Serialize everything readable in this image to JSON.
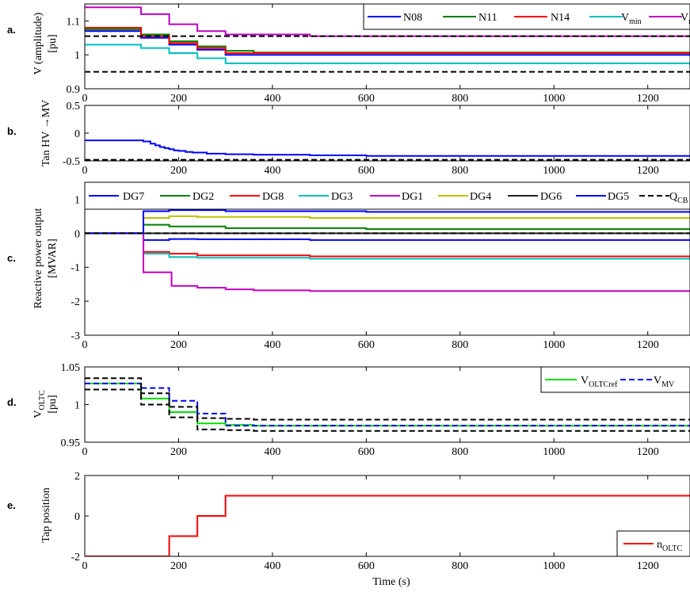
{
  "chart_data": [
    {
      "id": "a",
      "type": "line",
      "panel_letter": "a.",
      "ylabel_lines": [
        "V (amplitude)",
        "[pu]"
      ],
      "xlim": [
        0,
        1290
      ],
      "ylim": [
        0.9,
        1.15
      ],
      "xticks": [
        0,
        200,
        400,
        600,
        800,
        1000,
        1200
      ],
      "yticks": [
        0.9,
        1,
        1.1
      ],
      "ytick_labels": [
        "0.9",
        "1",
        "1.1"
      ],
      "legend": {
        "placement": "top-right",
        "orientation": "horizontal"
      },
      "series": [
        {
          "name": "N08",
          "color": "#0000ff",
          "dash": "solid",
          "step": true,
          "x": [
            0,
            120,
            180,
            240,
            300,
            1290
          ],
          "y": [
            1.07,
            1.05,
            1.03,
            1.015,
            1.0,
            1.0
          ]
        },
        {
          "name": "N11",
          "color": "#008000",
          "dash": "solid",
          "step": true,
          "x": [
            0,
            120,
            180,
            240,
            300,
            360,
            1290
          ],
          "y": [
            1.075,
            1.06,
            1.04,
            1.025,
            1.012,
            1.007,
            1.007
          ]
        },
        {
          "name": "N14",
          "color": "#ff0000",
          "dash": "solid",
          "step": true,
          "x": [
            0,
            120,
            180,
            240,
            300,
            1290
          ],
          "y": [
            1.08,
            1.055,
            1.035,
            1.02,
            1.005,
            1.005
          ]
        },
        {
          "name": "V",
          "name_sub": "min",
          "color": "#00c0c0",
          "dash": "solid",
          "step": true,
          "x": [
            0,
            120,
            180,
            240,
            300,
            1290
          ],
          "y": [
            1.03,
            1.02,
            1.005,
            0.99,
            0.975,
            0.97
          ]
        },
        {
          "name": "V",
          "name_sub": "max",
          "color": "#c000c0",
          "dash": "solid",
          "step": true,
          "x": [
            0,
            120,
            180,
            240,
            300,
            480,
            1290
          ],
          "y": [
            1.14,
            1.12,
            1.09,
            1.07,
            1.06,
            1.055,
            1.055
          ]
        },
        {
          "name": "",
          "color": "#000000",
          "dash": "dashed",
          "step": false,
          "x": [
            0,
            1290
          ],
          "y": [
            1.055,
            1.055
          ]
        },
        {
          "name": "",
          "color": "#000000",
          "dash": "dashed",
          "step": false,
          "x": [
            0,
            1290
          ],
          "y": [
            0.95,
            0.95
          ]
        }
      ]
    },
    {
      "id": "b",
      "type": "line",
      "panel_letter": "b.",
      "ylabel_lines": [
        "Tan HV →MV"
      ],
      "xlim": [
        0,
        1290
      ],
      "ylim": [
        -0.5,
        0.5
      ],
      "xticks": [
        0,
        200,
        400,
        600,
        800,
        1000,
        1200
      ],
      "yticks": [
        -0.5,
        0,
        0.5
      ],
      "ytick_labels": [
        "-0.5",
        "0",
        "0.5"
      ],
      "series": [
        {
          "name": "",
          "color": "#0000ff",
          "dash": "solid",
          "step": true,
          "x": [
            0,
            125,
            140,
            150,
            160,
            170,
            180,
            190,
            200,
            215,
            230,
            260,
            300,
            360,
            480,
            600,
            1290
          ],
          "y": [
            -0.13,
            -0.15,
            -0.19,
            -0.22,
            -0.25,
            -0.27,
            -0.29,
            -0.31,
            -0.32,
            -0.34,
            -0.35,
            -0.37,
            -0.38,
            -0.39,
            -0.4,
            -0.41,
            -0.41
          ]
        },
        {
          "name": "",
          "color": "#000000",
          "dash": "dashed",
          "step": false,
          "x": [
            0,
            1290
          ],
          "y": [
            -0.48,
            -0.48
          ]
        }
      ]
    },
    {
      "id": "c",
      "type": "line",
      "panel_letter": "c.",
      "ylabel_lines": [
        "Reactive power output",
        "[MVAR]"
      ],
      "xlim": [
        0,
        1290
      ],
      "ylim": [
        -3,
        1.5
      ],
      "xticks": [
        0,
        200,
        400,
        600,
        800,
        1000,
        1200
      ],
      "yticks": [
        -3,
        -2,
        -1,
        0,
        1
      ],
      "ytick_labels": [
        "-3",
        "-2",
        "-1",
        "0",
        "1"
      ],
      "legend": {
        "placement": "top",
        "orientation": "horizontal"
      },
      "series": [
        {
          "name": "DG7",
          "color": "#0000ff",
          "dash": "solid",
          "step": true,
          "x": [
            0,
            125,
            180,
            240,
            480,
            1290
          ],
          "y": [
            0,
            -0.2,
            -0.17,
            -0.18,
            -0.2,
            -0.2
          ]
        },
        {
          "name": "DG2",
          "color": "#008000",
          "dash": "solid",
          "step": true,
          "x": [
            0,
            125,
            180,
            300,
            600,
            1290
          ],
          "y": [
            0,
            0.25,
            0.2,
            0.15,
            0.12,
            0.1
          ]
        },
        {
          "name": "DG8",
          "color": "#ff0000",
          "dash": "solid",
          "step": true,
          "x": [
            0,
            125,
            180,
            240,
            480,
            1290
          ],
          "y": [
            0,
            -0.55,
            -0.6,
            -0.65,
            -0.68,
            -0.7
          ]
        },
        {
          "name": "DG3",
          "color": "#00c0c0",
          "dash": "solid",
          "step": true,
          "x": [
            0,
            125,
            180,
            240,
            480,
            1290
          ],
          "y": [
            0,
            -0.6,
            -0.7,
            -0.72,
            -0.75,
            -0.78
          ]
        },
        {
          "name": "DG1",
          "color": "#c000c0",
          "dash": "solid",
          "step": true,
          "x": [
            0,
            125,
            185,
            240,
            300,
            360,
            480,
            1290
          ],
          "y": [
            0,
            -1.15,
            -1.55,
            -1.6,
            -1.65,
            -1.68,
            -1.7,
            -1.7
          ]
        },
        {
          "name": "DG4",
          "color": "#c0c000",
          "dash": "solid",
          "step": true,
          "x": [
            0,
            125,
            180,
            240,
            480,
            1290
          ],
          "y": [
            0,
            0.45,
            0.5,
            0.48,
            0.45,
            0.45
          ]
        },
        {
          "name": "DG6",
          "color": "#202020",
          "dash": "solid",
          "step": true,
          "x": [
            0,
            125,
            1290
          ],
          "y": [
            0,
            0,
            0
          ]
        },
        {
          "name": "DG5",
          "color": "#0000ff",
          "dash": "solid",
          "step": true,
          "x": [
            0,
            125,
            180,
            300,
            600,
            1290
          ],
          "y": [
            0,
            0.65,
            0.68,
            0.65,
            0.63,
            0.63
          ]
        },
        {
          "name": "Q",
          "name_sub": "CB",
          "color": "#000000",
          "dash": "dashed",
          "step": true,
          "x": [
            0,
            1290
          ],
          "y": [
            0,
            0
          ]
        }
      ]
    },
    {
      "id": "d",
      "type": "line",
      "panel_letter": "d.",
      "ylabel_lines": [
        "V",
        "[pu]"
      ],
      "ylabel_sub": "OLTC",
      "xlim": [
        0,
        1290
      ],
      "ylim": [
        0.95,
        1.05
      ],
      "xticks": [
        0,
        200,
        400,
        600,
        800,
        1000,
        1200
      ],
      "yticks": [
        0.95,
        1,
        1.05
      ],
      "ytick_labels": [
        "0.95",
        "1",
        "1.05"
      ],
      "legend": {
        "placement": "top-right",
        "orientation": "horizontal"
      },
      "series": [
        {
          "name": "V",
          "name_sub": "OLTCref",
          "color": "#00e000",
          "dash": "solid",
          "step": true,
          "x": [
            0,
            120,
            180,
            240,
            300,
            360,
            1290
          ],
          "y": [
            1.028,
            1.008,
            0.99,
            0.975,
            0.973,
            0.972,
            0.972
          ]
        },
        {
          "name": "V",
          "name_sub": "MV",
          "color": "#0000ff",
          "dash": "dashed",
          "step": true,
          "x": [
            0,
            120,
            180,
            240,
            300,
            1290
          ],
          "y": [
            1.028,
            1.022,
            1.005,
            0.988,
            0.972,
            0.972
          ]
        },
        {
          "name": "",
          "color": "#000000",
          "dash": "dashed",
          "step": true,
          "x": [
            0,
            120,
            180,
            240,
            300,
            360,
            1290
          ],
          "y": [
            1.035,
            1.015,
            0.997,
            0.982,
            0.981,
            0.98,
            0.98
          ]
        },
        {
          "name": "",
          "color": "#000000",
          "dash": "dashed",
          "step": true,
          "x": [
            0,
            120,
            180,
            240,
            300,
            360,
            1290
          ],
          "y": [
            1.02,
            1.0,
            0.983,
            0.967,
            0.966,
            0.965,
            0.965
          ]
        }
      ]
    },
    {
      "id": "e",
      "type": "line",
      "panel_letter": "e.",
      "ylabel_lines": [
        "Tap position"
      ],
      "xlabel": "Time (s)",
      "xlim": [
        0,
        1290
      ],
      "ylim": [
        -2,
        2
      ],
      "xticks": [
        0,
        200,
        400,
        600,
        800,
        1000,
        1200
      ],
      "yticks": [
        -2,
        0,
        2
      ],
      "ytick_labels": [
        "-2",
        "0",
        "2"
      ],
      "legend": {
        "placement": "bottom-right",
        "orientation": "horizontal"
      },
      "series": [
        {
          "name": "n",
          "name_sub": "OLTC",
          "color": "#ff0000",
          "dash": "solid",
          "step": true,
          "x": [
            0,
            180,
            240,
            300,
            1290
          ],
          "y": [
            -2,
            -1,
            0,
            1,
            1
          ]
        }
      ]
    }
  ]
}
